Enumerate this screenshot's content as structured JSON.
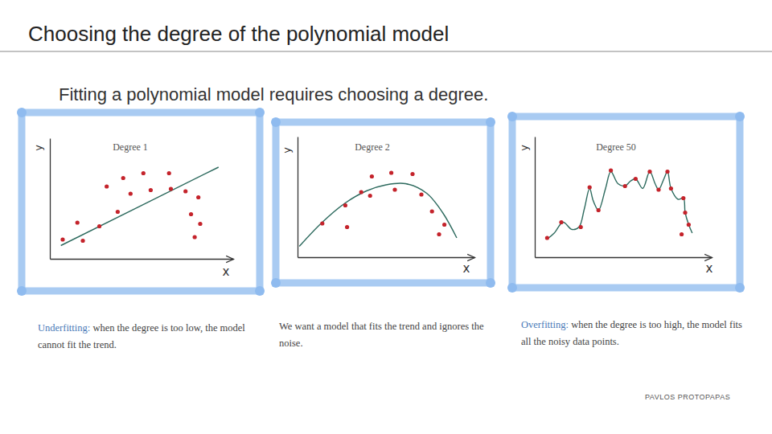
{
  "slide": {
    "title": "Choosing the degree of the polynomial model",
    "subtitle": "Fitting a polynomial model requires choosing a degree.",
    "footer": "PAVLOS PROTOPAPAS"
  },
  "chart_data": [
    {
      "type": "scatter",
      "title": "Degree 1",
      "x_label": "x",
      "y_label": "y",
      "xlim": [
        0,
        10
      ],
      "ylim": [
        0,
        10
      ],
      "tick_labels": false,
      "grid": false,
      "caption": {
        "term": "Underfitting:",
        "text": "when the degree is too low, the model cannot fit the trend."
      },
      "series": [
        {
          "type": "scatter",
          "marker": "circle",
          "color": "#c4232b",
          "x": [
            0.7,
            1.5,
            1.8,
            2.7,
            3.1,
            3.7,
            4.0,
            4.4,
            5.1,
            5.5,
            6.5,
            6.6,
            7.4,
            8.1,
            7.7,
            7.9,
            8.2
          ],
          "values": [
            1.6,
            3.0,
            1.5,
            2.7,
            6.0,
            3.9,
            6.7,
            5.4,
            7.1,
            5.7,
            7.1,
            5.8,
            5.6,
            5.1,
            3.7,
            1.8,
            2.9
          ]
        },
        {
          "type": "line",
          "line_style": "solid",
          "color": "#2d6a5e",
          "x": [
            0.6,
            9.2
          ],
          "values": [
            1.1,
            7.6
          ]
        }
      ]
    },
    {
      "type": "scatter",
      "title": "Degree 2",
      "x_label": "x",
      "y_label": "y",
      "xlim": [
        0,
        10
      ],
      "ylim": [
        0,
        10
      ],
      "tick_labels": false,
      "grid": false,
      "caption": {
        "text": "We want a model that fits the trend and ignores the noise."
      },
      "series": [
        {
          "type": "scatter",
          "marker": "circle",
          "color": "#c4232b",
          "x": [
            1.4,
            2.7,
            2.8,
            3.6,
            4.1,
            4.2,
            5.3,
            5.5,
            6.5,
            7.0,
            7.6,
            8.0,
            8.3
          ],
          "values": [
            2.8,
            4.3,
            2.5,
            5.4,
            5.1,
            6.7,
            7.0,
            5.6,
            6.9,
            5.2,
            3.8,
            1.9,
            2.7
          ]
        },
        {
          "type": "line",
          "line_style": "solid",
          "color": "#2d6a5e",
          "x": [
            0.1,
            1.4,
            2.7,
            3.9,
            5.0,
            6.1,
            7.3,
            8.2,
            9.0
          ],
          "values": [
            0.9,
            2.9,
            4.5,
            5.5,
            6.0,
            6.1,
            5.3,
            3.7,
            1.6
          ]
        }
      ]
    },
    {
      "type": "scatter",
      "title": "Degree 50",
      "x_label": "x",
      "y_label": "y",
      "xlim": [
        0,
        10
      ],
      "ylim": [
        0,
        10
      ],
      "tick_labels": false,
      "grid": false,
      "caption": {
        "term": "Overfitting:",
        "text": "when the degree is too high, the model fits all the noisy data points."
      },
      "series": [
        {
          "type": "scatter",
          "marker": "circle",
          "color": "#c4232b",
          "x": [
            0.7,
            1.5,
            2.6,
            3.1,
            3.6,
            4.3,
            5.1,
            5.7,
            6.5,
            7.0,
            7.5,
            7.7,
            8.4,
            8.5,
            8.3,
            8.7
          ],
          "values": [
            1.6,
            2.9,
            2.5,
            5.8,
            3.9,
            7.2,
            5.9,
            6.5,
            7.1,
            5.6,
            7.1,
            5.7,
            4.9,
            3.7,
            1.9,
            2.7
          ]
        },
        {
          "type": "line",
          "line_style": "solid",
          "color": "#2d6a5e",
          "x": [
            0.7,
            1.1,
            1.6,
            2.1,
            2.5,
            2.8,
            3.1,
            3.3,
            3.6,
            4.0,
            4.3,
            4.7,
            5.1,
            5.4,
            5.7,
            6.1,
            6.5,
            6.8,
            7.0,
            7.3,
            7.5,
            7.7,
            8.1,
            8.4,
            8.5,
            8.7,
            8.9
          ],
          "values": [
            1.5,
            2.0,
            2.9,
            2.3,
            2.5,
            4.0,
            5.7,
            4.7,
            3.9,
            5.7,
            7.1,
            6.1,
            5.9,
            6.3,
            6.5,
            5.7,
            7.1,
            6.1,
            5.6,
            6.5,
            7.1,
            5.7,
            4.8,
            4.9,
            3.7,
            2.7,
            2.0
          ]
        }
      ]
    }
  ]
}
